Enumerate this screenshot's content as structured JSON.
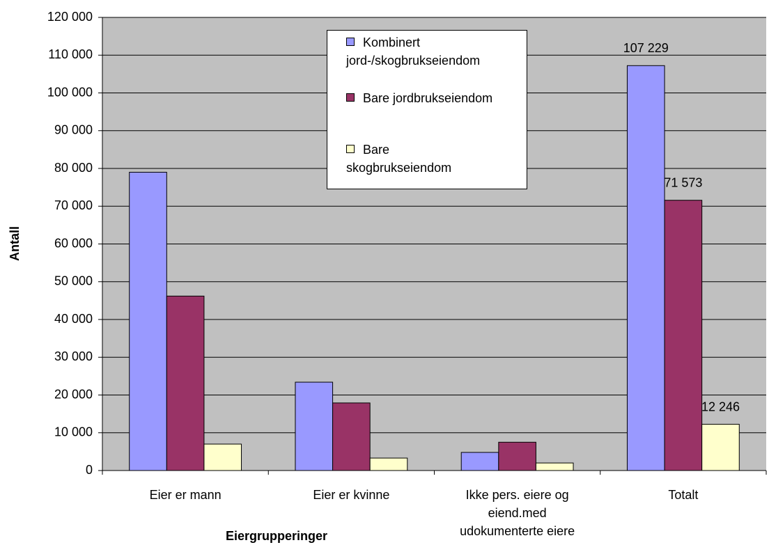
{
  "chart_data": {
    "type": "bar",
    "ylabel": "Antall",
    "xlabel": "Eiergrupperinger",
    "categories": [
      "Eier er mann",
      "Eier er kvinne",
      "Ikke pers. eiere og eiend.med udokumenterte eiere",
      "Totalt"
    ],
    "series": [
      {
        "name": "Kombinert jord-/skogbrukseiendom",
        "color": "#9999ff",
        "values": [
          79000,
          23400,
          4800,
          107229
        ],
        "value_labels": [
          null,
          null,
          null,
          "107 229"
        ]
      },
      {
        "name": "Bare jordbrukseiendom",
        "color": "#993366",
        "values": [
          46200,
          17900,
          7500,
          71573
        ],
        "value_labels": [
          null,
          null,
          null,
          "71 573"
        ]
      },
      {
        "name": "Bare skogbrukseiendom",
        "color": "#ffffcc",
        "values": [
          7000,
          3300,
          2000,
          12246
        ],
        "value_labels": [
          null,
          null,
          null,
          "12 246"
        ]
      }
    ],
    "ylim": [
      0,
      120000
    ],
    "yticks": [
      0,
      {
        "value": 10000,
        "label": "10 000"
      },
      {
        "value": 20000,
        "label": "20 000"
      },
      {
        "value": 30000,
        "label": "30 000"
      },
      {
        "value": 40000,
        "label": "40 000"
      },
      {
        "value": 50000,
        "label": "50 000"
      },
      {
        "value": 60000,
        "label": "60 000"
      },
      {
        "value": 70000,
        "label": "70 000"
      },
      {
        "value": 80000,
        "label": "80 000"
      },
      {
        "value": 90000,
        "label": "90 000"
      },
      {
        "value": 100000,
        "label": "100 000"
      },
      {
        "value": 110000,
        "label": "110 000"
      },
      {
        "value": 120000,
        "label": "120 000"
      }
    ],
    "grid": true,
    "background": "#c0c0c0",
    "legend": "top"
  }
}
